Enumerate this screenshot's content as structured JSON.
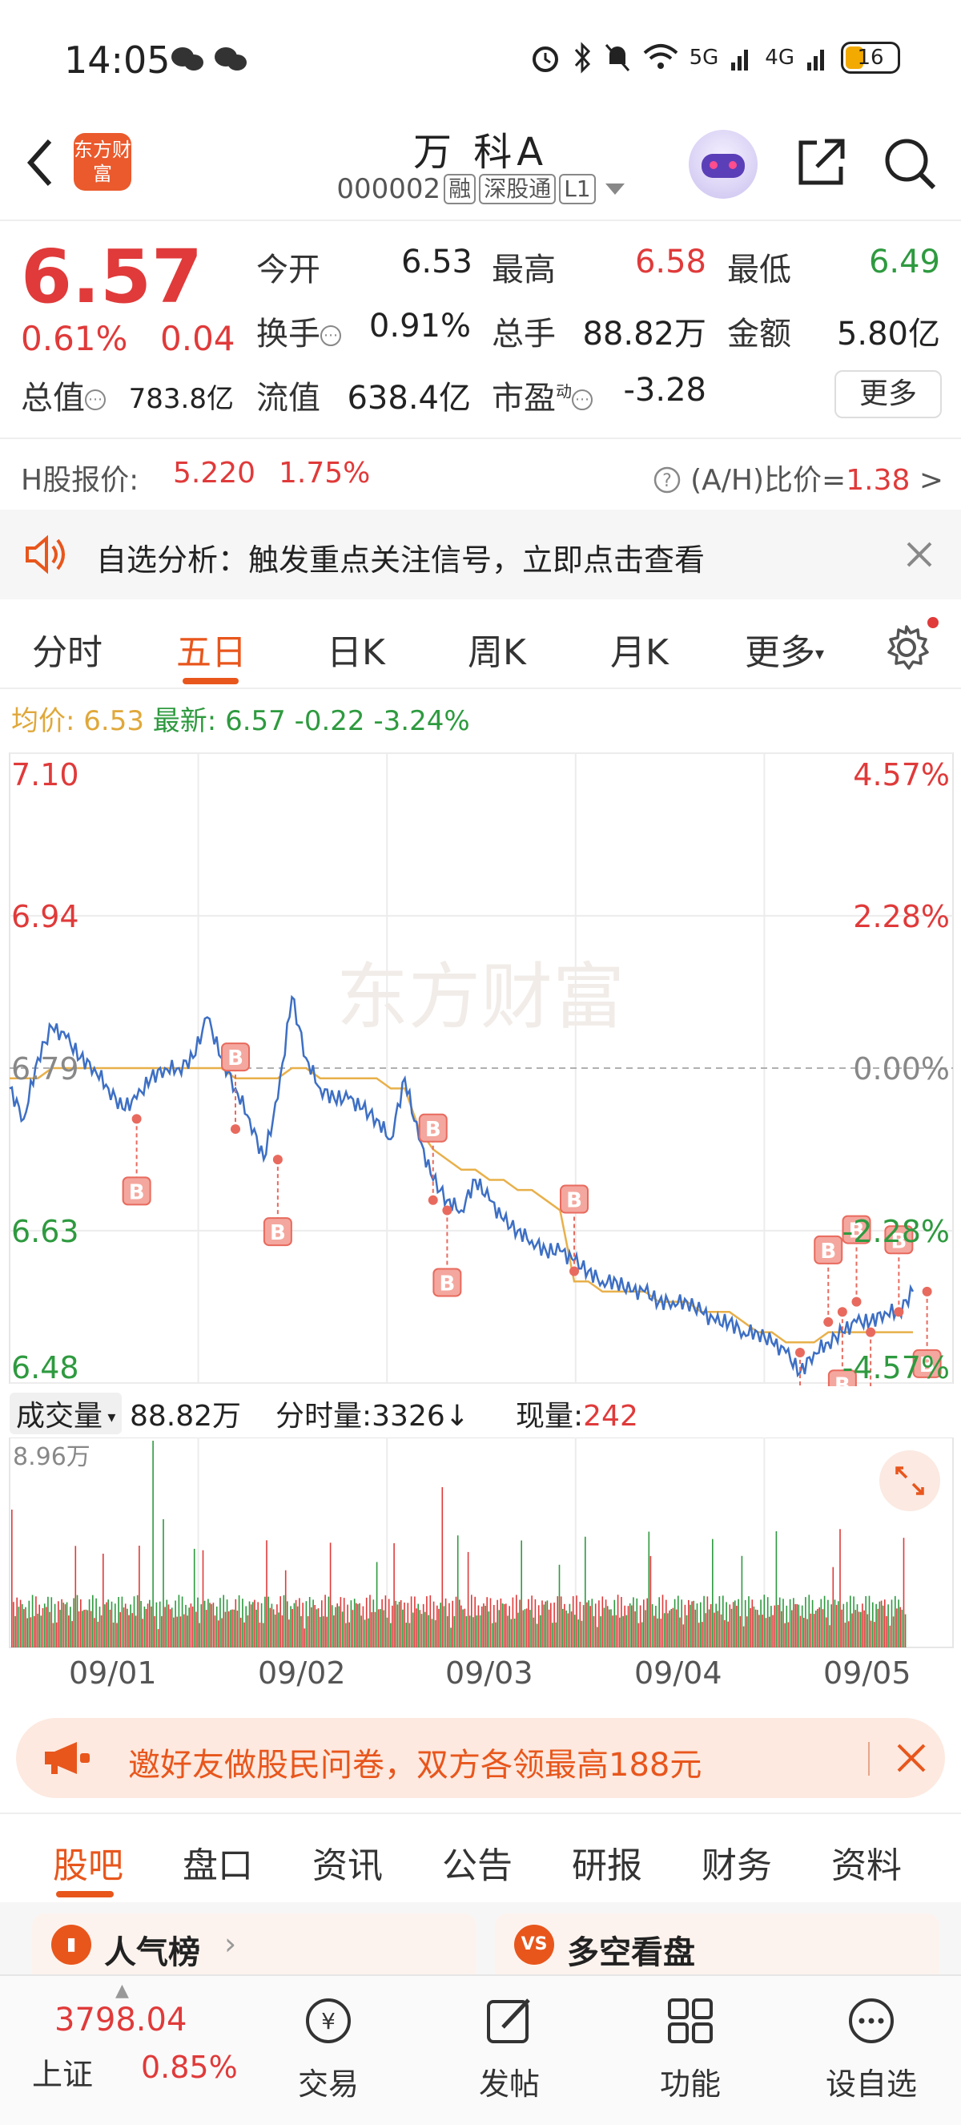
{
  "status_bar": {
    "time": "14:05",
    "network1": "5G",
    "network2": "4G",
    "battery": "16"
  },
  "header": {
    "logo_text": "东方财富",
    "stock_name": "万 科A",
    "stock_code": "000002",
    "tags": [
      "融",
      "深股通",
      "L1"
    ]
  },
  "quote": {
    "price": "6.57",
    "change_pct": "0.61%",
    "change": "0.04",
    "open_label": "今开",
    "open": "6.53",
    "high_label": "最高",
    "high": "6.58",
    "low_label": "最低",
    "low": "6.49",
    "turnover_label": "换手",
    "turnover": "0.91%",
    "volume_label": "总手",
    "volume": "88.82万",
    "amount_label": "金额",
    "amount": "5.80亿",
    "mcap_label": "总值",
    "mcap": "783.8亿",
    "float_label": "流值",
    "float_cap": "638.4亿",
    "pe_label": "市盈",
    "pe_sup": "动",
    "pe": "-3.28",
    "more_label": "更多"
  },
  "h_share": {
    "label": "H股报价:",
    "price": "5.220",
    "pct": "1.75%",
    "ah_label": "(A/H)比价=",
    "ah_value": "1.38",
    "ah_arrow": ">"
  },
  "notice": {
    "text": "自选分析：触发重点关注信号，立即点击查看"
  },
  "chart_tabs": {
    "items": [
      "分时",
      "五日",
      "日K",
      "周K",
      "月K",
      "更多"
    ],
    "active": "五日"
  },
  "avg_line": {
    "avg_label": "均价:",
    "avg_value": "6.53",
    "latest_label": "最新:",
    "latest_value": "6.57",
    "latest_change": "-0.22",
    "latest_pct": "-3.24%"
  },
  "chart_data": {
    "type": "line",
    "title": "",
    "y_left_ticks": [
      "7.10",
      "6.94",
      "6.79",
      "6.63",
      "6.48"
    ],
    "y_right_ticks": [
      "4.57%",
      "2.28%",
      "0.00%",
      "-2.28%",
      "-4.57%"
    ],
    "ylim": [
      6.48,
      7.1
    ],
    "prev_close": 6.79,
    "x_dates": [
      "09/01",
      "09/02",
      "09/03",
      "09/04",
      "09/05"
    ],
    "price_series": [
      6.77,
      6.74,
      6.8,
      6.83,
      6.82,
      6.8,
      6.79,
      6.77,
      6.75,
      6.76,
      6.78,
      6.79,
      6.79,
      6.8,
      6.84,
      6.8,
      6.77,
      6.74,
      6.7,
      6.76,
      6.86,
      6.8,
      6.77,
      6.76,
      6.76,
      6.75,
      6.74,
      6.72,
      6.78,
      6.72,
      6.68,
      6.66,
      6.65,
      6.68,
      6.66,
      6.64,
      6.63,
      6.62,
      6.61,
      6.61,
      6.6,
      6.59,
      6.58,
      6.58,
      6.57,
      6.57,
      6.56,
      6.56,
      6.56,
      6.55,
      6.54,
      6.54,
      6.53,
      6.53,
      6.52,
      6.51,
      6.49,
      6.51,
      6.52,
      6.53,
      6.54,
      6.54,
      6.55,
      6.55,
      6.57
    ],
    "avg_series": [
      6.78,
      6.78,
      6.78,
      6.79,
      6.79,
      6.79,
      6.79,
      6.79,
      6.79,
      6.79,
      6.79,
      6.79,
      6.79,
      6.79,
      6.79,
      6.79,
      6.78,
      6.78,
      6.78,
      6.78,
      6.79,
      6.79,
      6.78,
      6.78,
      6.78,
      6.78,
      6.78,
      6.77,
      6.77,
      6.73,
      6.71,
      6.7,
      6.69,
      6.69,
      6.68,
      6.68,
      6.67,
      6.67,
      6.66,
      6.65,
      6.58,
      6.58,
      6.57,
      6.57,
      6.57,
      6.57,
      6.56,
      6.56,
      6.56,
      6.55,
      6.55,
      6.55,
      6.54,
      6.53,
      6.53,
      6.52,
      6.52,
      6.52,
      6.53,
      6.53,
      6.53,
      6.53,
      6.53,
      6.53,
      6.53
    ],
    "buy_markers": [
      {
        "x": 9,
        "y": 6.74
      },
      {
        "x": 16,
        "y": 6.73
      },
      {
        "x": 19,
        "y": 6.7
      },
      {
        "x": 30,
        "y": 6.66
      },
      {
        "x": 31,
        "y": 6.65
      },
      {
        "x": 40,
        "y": 6.59
      },
      {
        "x": 56,
        "y": 6.51
      },
      {
        "x": 58,
        "y": 6.54
      },
      {
        "x": 59,
        "y": 6.55
      },
      {
        "x": 60,
        "y": 6.56
      },
      {
        "x": 61,
        "y": 6.53
      },
      {
        "x": 63,
        "y": 6.55
      },
      {
        "x": 65,
        "y": 6.57
      }
    ],
    "buy_marker_label": "B",
    "watermark": "东方财富",
    "volume": {
      "label": "成交量",
      "total": "88.82万",
      "fs_label": "分时量:",
      "fs_value": "3326",
      "fs_arrow": "↓",
      "now_label": "现量:",
      "now_value": "242",
      "max_label": "8.96万",
      "max": 8.96
    },
    "colors": {
      "price": "#3d6fc4",
      "avg": "#e8b04a",
      "up": "#e03a3a",
      "down": "#2e9a3f",
      "marker": "#e86a5e"
    }
  },
  "promo": {
    "text": "邀好友做股民问卷，双方各领最高188元"
  },
  "bottom_tabs": {
    "items": [
      "股吧",
      "盘口",
      "资讯",
      "公告",
      "研报",
      "财务",
      "资料"
    ],
    "active": "股吧"
  },
  "cards": [
    {
      "title": "人气榜",
      "icon": "chart-icon"
    },
    {
      "title": "多空看盘",
      "icon": "vs-icon",
      "icon_text": "VS"
    }
  ],
  "bottom_nav": {
    "index_value": "3798.04",
    "index_name": "上证",
    "index_pct": "0.85%",
    "items": [
      "交易",
      "发帖",
      "功能",
      "设自选"
    ]
  }
}
